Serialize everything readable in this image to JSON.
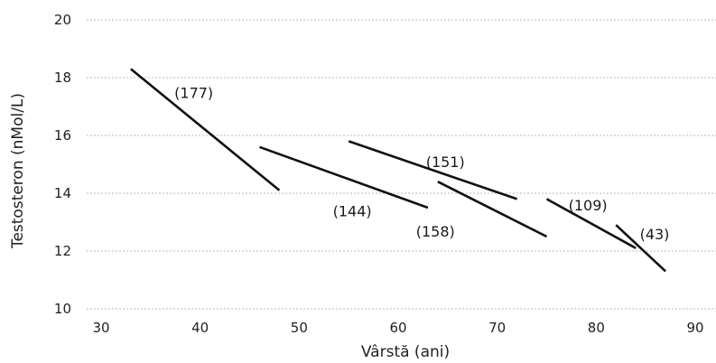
{
  "chart_data": {
    "type": "line",
    "xlabel": "Vârstă (ani)",
    "ylabel": "Testosteron (nMol/L)",
    "xlim": [
      25,
      92
    ],
    "ylim": [
      10,
      20
    ],
    "xticks": [
      30,
      40,
      50,
      60,
      70,
      80,
      90
    ],
    "yticks": [
      10,
      12,
      14,
      16,
      18,
      20
    ],
    "grid": "horizontal",
    "legend": "none",
    "series": [
      {
        "label": "(177)",
        "x": [
          33,
          48
        ],
        "y": [
          18.3,
          14.1
        ]
      },
      {
        "label": "(144)",
        "x": [
          46,
          63
        ],
        "y": [
          15.6,
          13.5
        ]
      },
      {
        "label": "(151)",
        "x": [
          55,
          72
        ],
        "y": [
          15.8,
          13.8
        ]
      },
      {
        "label": "(158)",
        "x": [
          64,
          75
        ],
        "y": [
          14.4,
          12.5
        ]
      },
      {
        "label": "(109)",
        "x": [
          75,
          84
        ],
        "y": [
          13.8,
          12.1
        ]
      },
      {
        "label": "(43)",
        "x": [
          82,
          87
        ],
        "y": [
          12.9,
          11.3
        ]
      }
    ]
  }
}
